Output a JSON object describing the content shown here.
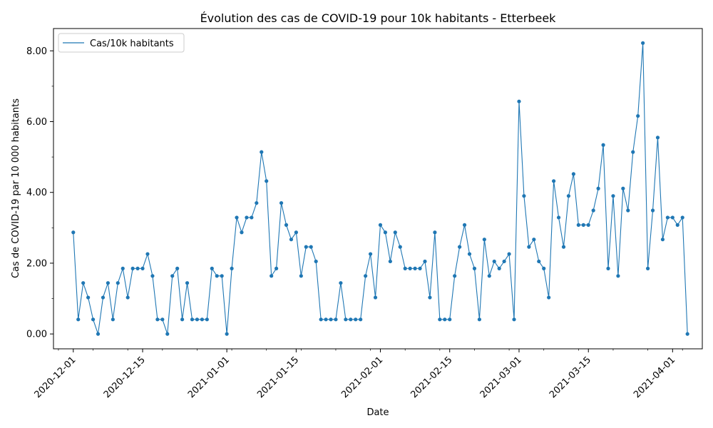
{
  "chart_data": {
    "type": "line",
    "title": "Évolution des cas de COVID-19 pour 10k habitants - Etterbeek",
    "xlabel": "Date",
    "ylabel": "Cas de COVID-19 par 10 000 habitants",
    "ylim": [
      -0.42,
      8.63
    ],
    "xlim": [
      "2020-11-27",
      "2021-04-07"
    ],
    "grid": false,
    "legend_position": "top-left",
    "x_ticks": [
      "2020-12-01",
      "2020-12-15",
      "2021-01-01",
      "2021-01-15",
      "2021-02-01",
      "2021-02-15",
      "2021-03-01",
      "2021-03-15",
      "2021-04-01"
    ],
    "y_ticks": [
      "0.00",
      "2.00",
      "4.00",
      "6.00",
      "8.00"
    ],
    "color": "#1f77b4",
    "series": [
      {
        "name": "Cas/10k habitants",
        "x": [
          "2020-12-01",
          "2020-12-02",
          "2020-12-03",
          "2020-12-04",
          "2020-12-05",
          "2020-12-06",
          "2020-12-07",
          "2020-12-08",
          "2020-12-09",
          "2020-12-10",
          "2020-12-11",
          "2020-12-12",
          "2020-12-13",
          "2020-12-14",
          "2020-12-15",
          "2020-12-16",
          "2020-12-17",
          "2020-12-18",
          "2020-12-19",
          "2020-12-20",
          "2020-12-21",
          "2020-12-22",
          "2020-12-23",
          "2020-12-24",
          "2020-12-25",
          "2020-12-26",
          "2020-12-27",
          "2020-12-28",
          "2020-12-29",
          "2020-12-30",
          "2020-12-31",
          "2021-01-01",
          "2021-01-02",
          "2021-01-03",
          "2021-01-04",
          "2021-01-05",
          "2021-01-06",
          "2021-01-07",
          "2021-01-08",
          "2021-01-09",
          "2021-01-10",
          "2021-01-11",
          "2021-01-12",
          "2021-01-13",
          "2021-01-14",
          "2021-01-15",
          "2021-01-16",
          "2021-01-17",
          "2021-01-18",
          "2021-01-19",
          "2021-01-20",
          "2021-01-21",
          "2021-01-22",
          "2021-01-23",
          "2021-01-24",
          "2021-01-25",
          "2021-01-26",
          "2021-01-27",
          "2021-01-28",
          "2021-01-29",
          "2021-01-30",
          "2021-01-31",
          "2021-02-01",
          "2021-02-02",
          "2021-02-03",
          "2021-02-04",
          "2021-02-05",
          "2021-02-06",
          "2021-02-07",
          "2021-02-08",
          "2021-02-09",
          "2021-02-10",
          "2021-02-11",
          "2021-02-12",
          "2021-02-13",
          "2021-02-14",
          "2021-02-15",
          "2021-02-16",
          "2021-02-17",
          "2021-02-18",
          "2021-02-19",
          "2021-02-20",
          "2021-02-21",
          "2021-02-22",
          "2021-02-23",
          "2021-02-24",
          "2021-02-25",
          "2021-02-26",
          "2021-02-27",
          "2021-02-28",
          "2021-03-01",
          "2021-03-02",
          "2021-03-03",
          "2021-03-04",
          "2021-03-05",
          "2021-03-06",
          "2021-03-07",
          "2021-03-08",
          "2021-03-09",
          "2021-03-10",
          "2021-03-11",
          "2021-03-12",
          "2021-03-13",
          "2021-03-14",
          "2021-03-15",
          "2021-03-16",
          "2021-03-17",
          "2021-03-18",
          "2021-03-19",
          "2021-03-20",
          "2021-03-21",
          "2021-03-22",
          "2021-03-23",
          "2021-03-24",
          "2021-03-25",
          "2021-03-26",
          "2021-03-27",
          "2021-03-28",
          "2021-03-29",
          "2021-03-30",
          "2021-03-31",
          "2021-04-01",
          "2021-04-02",
          "2021-04-03",
          "2021-04-04"
        ],
        "values": [
          2.87,
          0.41,
          1.44,
          1.03,
          0.41,
          0.0,
          1.03,
          1.44,
          0.41,
          1.44,
          1.85,
          1.03,
          1.85,
          1.85,
          1.85,
          2.26,
          1.64,
          0.41,
          0.41,
          0.0,
          1.64,
          1.85,
          0.41,
          1.44,
          0.41,
          0.41,
          0.41,
          0.41,
          1.85,
          1.64,
          1.64,
          0.0,
          1.85,
          3.29,
          2.87,
          3.29,
          3.29,
          3.7,
          5.14,
          4.32,
          1.64,
          1.85,
          3.7,
          3.08,
          2.67,
          2.87,
          1.64,
          2.46,
          2.46,
          2.05,
          0.41,
          0.41,
          0.41,
          0.41,
          1.44,
          0.41,
          0.41,
          0.41,
          0.41,
          1.64,
          2.26,
          1.03,
          3.08,
          2.87,
          2.05,
          2.87,
          2.46,
          1.85,
          1.85,
          1.85,
          1.85,
          2.05,
          1.03,
          2.87,
          0.41,
          0.41,
          0.41,
          1.64,
          2.46,
          3.08,
          2.26,
          1.85,
          0.41,
          2.67,
          1.64,
          2.05,
          1.85,
          2.05,
          2.26,
          0.41,
          6.57,
          3.9,
          2.46,
          2.67,
          2.05,
          1.85,
          1.03,
          4.32,
          3.29,
          2.46,
          3.9,
          4.52,
          3.08,
          3.08,
          3.08,
          3.49,
          4.11,
          5.34,
          1.85,
          3.9,
          1.64,
          4.11,
          3.49,
          5.14,
          6.16,
          8.22,
          1.85,
          3.49,
          5.55,
          2.67,
          3.29,
          3.29,
          3.08,
          3.29,
          0.0
        ]
      }
    ]
  }
}
